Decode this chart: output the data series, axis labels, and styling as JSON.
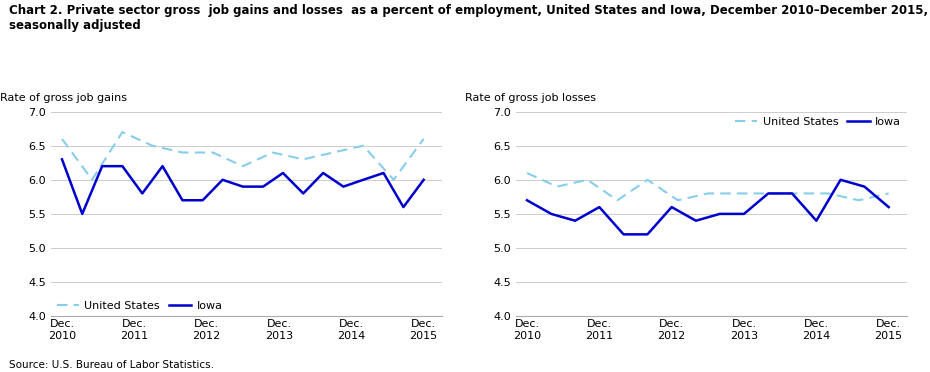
{
  "title_line1": "Chart 2. Private sector gross  job gains and losses  as a percent of employment, United States and Iowa, December 2010–December 2015,",
  "title_line2": "seasonally adjusted",
  "source": "Source: U.S. Bureau of Labor Statistics.",
  "left_ylabel": "Rate of gross job gains",
  "right_ylabel": "Rate of gross job losses",
  "x_labels": [
    "Dec.\n2010",
    "Dec.\n2011",
    "Dec.\n2012",
    "Dec.\n2013",
    "Dec.\n2014",
    "Dec.\n2015"
  ],
  "x_positions": [
    0,
    2,
    4,
    6,
    8,
    10
  ],
  "ylim": [
    4.0,
    7.0
  ],
  "yticks": [
    4.0,
    4.5,
    5.0,
    5.5,
    6.0,
    6.5,
    7.0
  ],
  "gains_us_x": [
    0,
    0.83,
    1.67,
    2.5,
    3.33,
    4.17,
    5.0,
    5.83,
    6.67,
    7.5,
    8.33,
    9.17,
    10.0
  ],
  "gains_us_y": [
    6.6,
    6.0,
    6.7,
    6.5,
    6.4,
    6.4,
    6.2,
    6.4,
    6.3,
    6.4,
    6.5,
    6.0,
    6.6
  ],
  "gains_iowa_x": [
    0,
    0.56,
    1.11,
    1.67,
    2.22,
    2.78,
    3.33,
    3.89,
    4.44,
    5.0,
    5.56,
    6.11,
    6.67,
    7.22,
    7.78,
    8.33,
    8.89,
    9.44,
    10.0
  ],
  "gains_iowa_y": [
    6.3,
    5.5,
    6.2,
    6.2,
    5.8,
    6.2,
    5.7,
    5.7,
    6.0,
    5.9,
    5.9,
    6.1,
    5.8,
    6.1,
    5.9,
    6.0,
    6.1,
    5.6,
    6.0
  ],
  "losses_us_x": [
    0,
    0.83,
    1.67,
    2.5,
    3.33,
    4.17,
    5.0,
    5.83,
    6.67,
    7.5,
    8.33,
    9.17,
    10.0
  ],
  "losses_us_y": [
    6.1,
    5.9,
    6.0,
    5.7,
    6.0,
    5.7,
    5.8,
    5.8,
    5.8,
    5.8,
    5.8,
    5.7,
    5.8
  ],
  "losses_iowa_x": [
    0,
    0.67,
    1.33,
    2.0,
    2.67,
    3.33,
    4.0,
    4.67,
    5.33,
    6.0,
    6.67,
    7.33,
    8.0,
    8.67,
    9.33,
    10.0
  ],
  "losses_iowa_y": [
    5.7,
    5.5,
    5.4,
    5.6,
    5.2,
    5.2,
    5.6,
    5.4,
    5.5,
    5.5,
    5.8,
    5.8,
    5.4,
    6.0,
    5.9,
    5.6
  ],
  "us_color": "#87CEEB",
  "iowa_color": "#0000CD",
  "background_color": "#ffffff",
  "title_fontsize": 8.5,
  "label_fontsize": 8.0,
  "tick_fontsize": 8.0
}
